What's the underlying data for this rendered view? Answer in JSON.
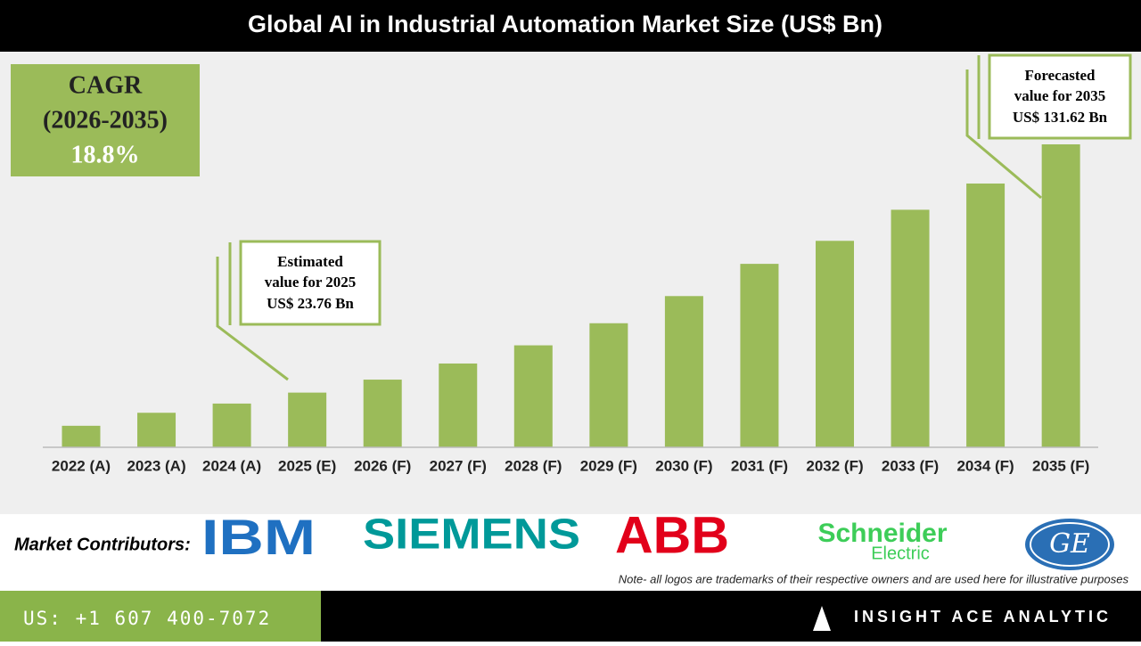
{
  "header": {
    "title": "Global AI in Industrial Automation Market Size (US$ Bn)"
  },
  "cagr": {
    "label": "CAGR",
    "period": "(2026-2035)",
    "value": "18.8%"
  },
  "chart_data": {
    "type": "bar",
    "categories": [
      "2022 (A)",
      "2023 (A)",
      "2024 (A)",
      "2025 (E)",
      "2026 (F)",
      "2027 (F)",
      "2028 (F)",
      "2029 (F)",
      "2030 (F)",
      "2031 (F)",
      "2032 (F)",
      "2033 (F)",
      "2034 (F)",
      "2035 (F)"
    ],
    "values": [
      9.35,
      15.0,
      19.0,
      23.76,
      29.4,
      36.4,
      44.3,
      53.9,
      65.7,
      79.7,
      89.7,
      103.2,
      114.6,
      131.62
    ],
    "color": "#9bbb59"
  },
  "callouts": [
    {
      "lines": [
        "Estimated",
        "value for 2025",
        "US$ 23.76 Bn"
      ]
    },
    {
      "lines": [
        "Forecasted",
        "value for 2035",
        "US$ 131.62 Bn"
      ]
    }
  ],
  "contributors": {
    "label": "Market Contributors:",
    "logos": [
      "IBM",
      "SIEMENS",
      "ABB",
      "Schneider",
      "Electric",
      "GE"
    ]
  },
  "note": "Note- all logos are trademarks of their respective owners and are used here for illustrative purposes",
  "footer": {
    "phone": "US: +1 607 400-7072",
    "brand": "INSIGHT ACE ANALYTIC"
  }
}
